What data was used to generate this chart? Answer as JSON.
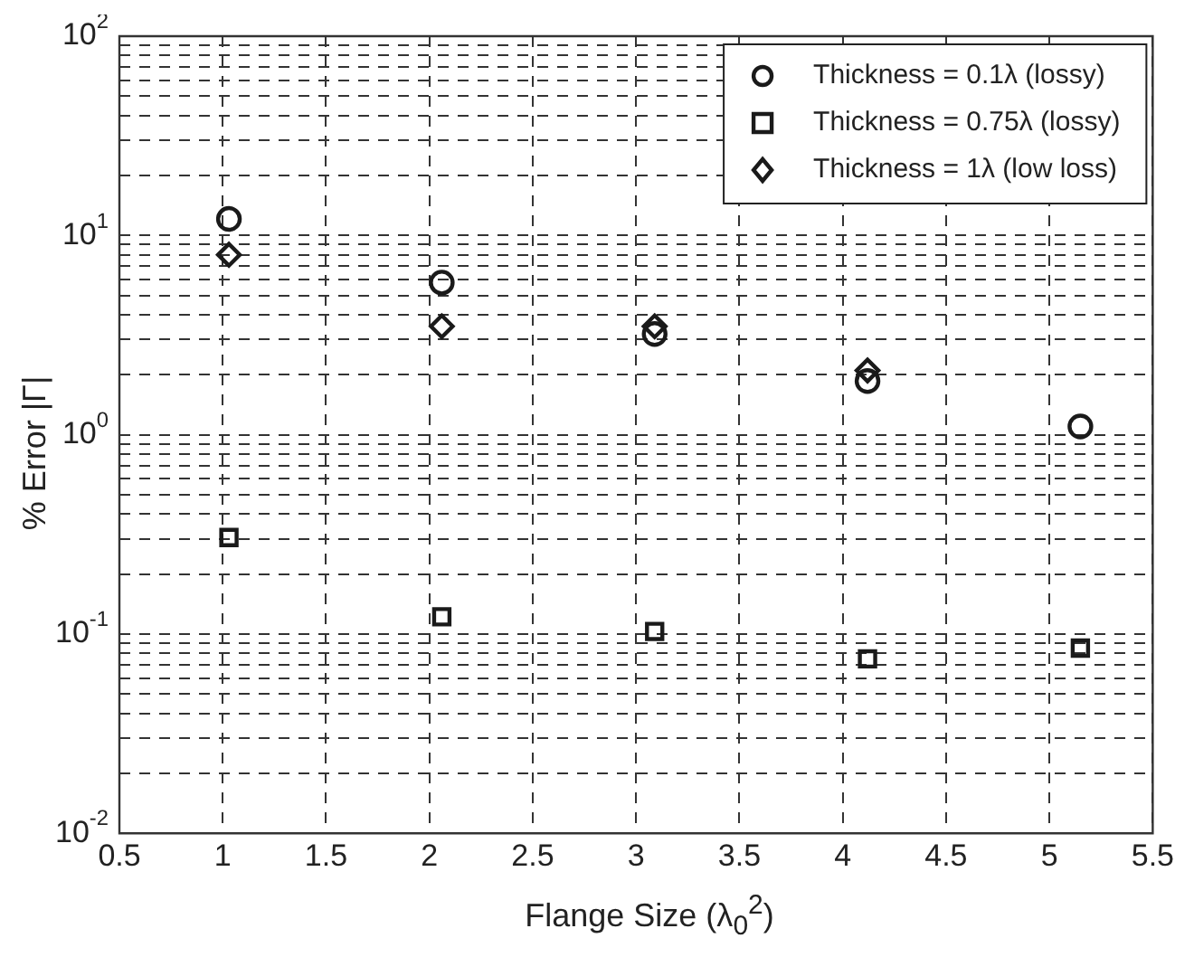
{
  "chart_data": {
    "type": "scatter",
    "xlabel": "Flange Size (λ$_{0}$$^{2}$)",
    "ylabel": "% Error |Γ|",
    "x": [
      1.03,
      2.06,
      3.09,
      4.12,
      5.15
    ],
    "series": [
      {
        "name": "Thickness = 0.1λ (lossy)",
        "color": "#1a1a1a",
        "marker": "circle",
        "values": [
          12.1,
          5.8,
          3.2,
          1.86,
          1.1
        ]
      },
      {
        "name": "Thickness = 0.75λ (lossy)",
        "color": "#1a1a1a",
        "marker": "square",
        "values": [
          0.305,
          0.122,
          0.103,
          0.075,
          0.085
        ]
      },
      {
        "name": "Thickness = 1λ (low loss)",
        "color": "#1a1a1a",
        "marker": "diamond",
        "values": [
          8.0,
          3.5,
          3.5,
          2.1,
          null
        ]
      }
    ],
    "xlim": [
      0.5,
      5.5
    ],
    "xticks": [
      0.5,
      1,
      1.5,
      2,
      2.5,
      3,
      3.5,
      4,
      4.5,
      5,
      5.5
    ],
    "ylim": [
      0.01,
      100
    ],
    "log": "y",
    "yticks": [
      {
        "value": 0.01,
        "label": "10$^{-2}$"
      },
      {
        "value": 0.02,
        "label": null
      },
      {
        "value": 0.03,
        "label": null
      },
      {
        "value": 0.04,
        "label": null
      },
      {
        "value": 0.05,
        "label": null
      },
      {
        "value": 0.06,
        "label": null
      },
      {
        "value": 0.07,
        "label": null
      },
      {
        "value": 0.08,
        "label": null
      },
      {
        "value": 0.09,
        "label": null
      },
      {
        "value": 0.1,
        "label": "10$^{-1}$"
      },
      {
        "value": 0.2,
        "label": null
      },
      {
        "value": 0.3,
        "label": null
      },
      {
        "value": 0.4,
        "label": null
      },
      {
        "value": 0.5,
        "label": null
      },
      {
        "value": 0.6,
        "label": null
      },
      {
        "value": 0.7,
        "label": null
      },
      {
        "value": 0.8,
        "label": null
      },
      {
        "value": 0.9,
        "label": null
      },
      {
        "value": 1,
        "label": "10$^{0}$"
      },
      {
        "value": 2,
        "label": null
      },
      {
        "value": 3,
        "label": null
      },
      {
        "value": 4,
        "label": null
      },
      {
        "value": 5,
        "label": null
      },
      {
        "value": 6,
        "label": null
      },
      {
        "value": 7,
        "label": null
      },
      {
        "value": 8,
        "label": null
      },
      {
        "value": 9,
        "label": null
      },
      {
        "value": 10,
        "label": "10$^{1}$"
      },
      {
        "value": 20,
        "label": null
      },
      {
        "value": 30,
        "label": null
      },
      {
        "value": 40,
        "label": null
      },
      {
        "value": 50,
        "label": null
      },
      {
        "value": 60,
        "label": null
      },
      {
        "value": 70,
        "label": null
      },
      {
        "value": 80,
        "label": null
      },
      {
        "value": 90,
        "label": null
      },
      {
        "value": 100,
        "label": "10$^{2}$"
      }
    ],
    "grid": true,
    "legend": "top right"
  }
}
